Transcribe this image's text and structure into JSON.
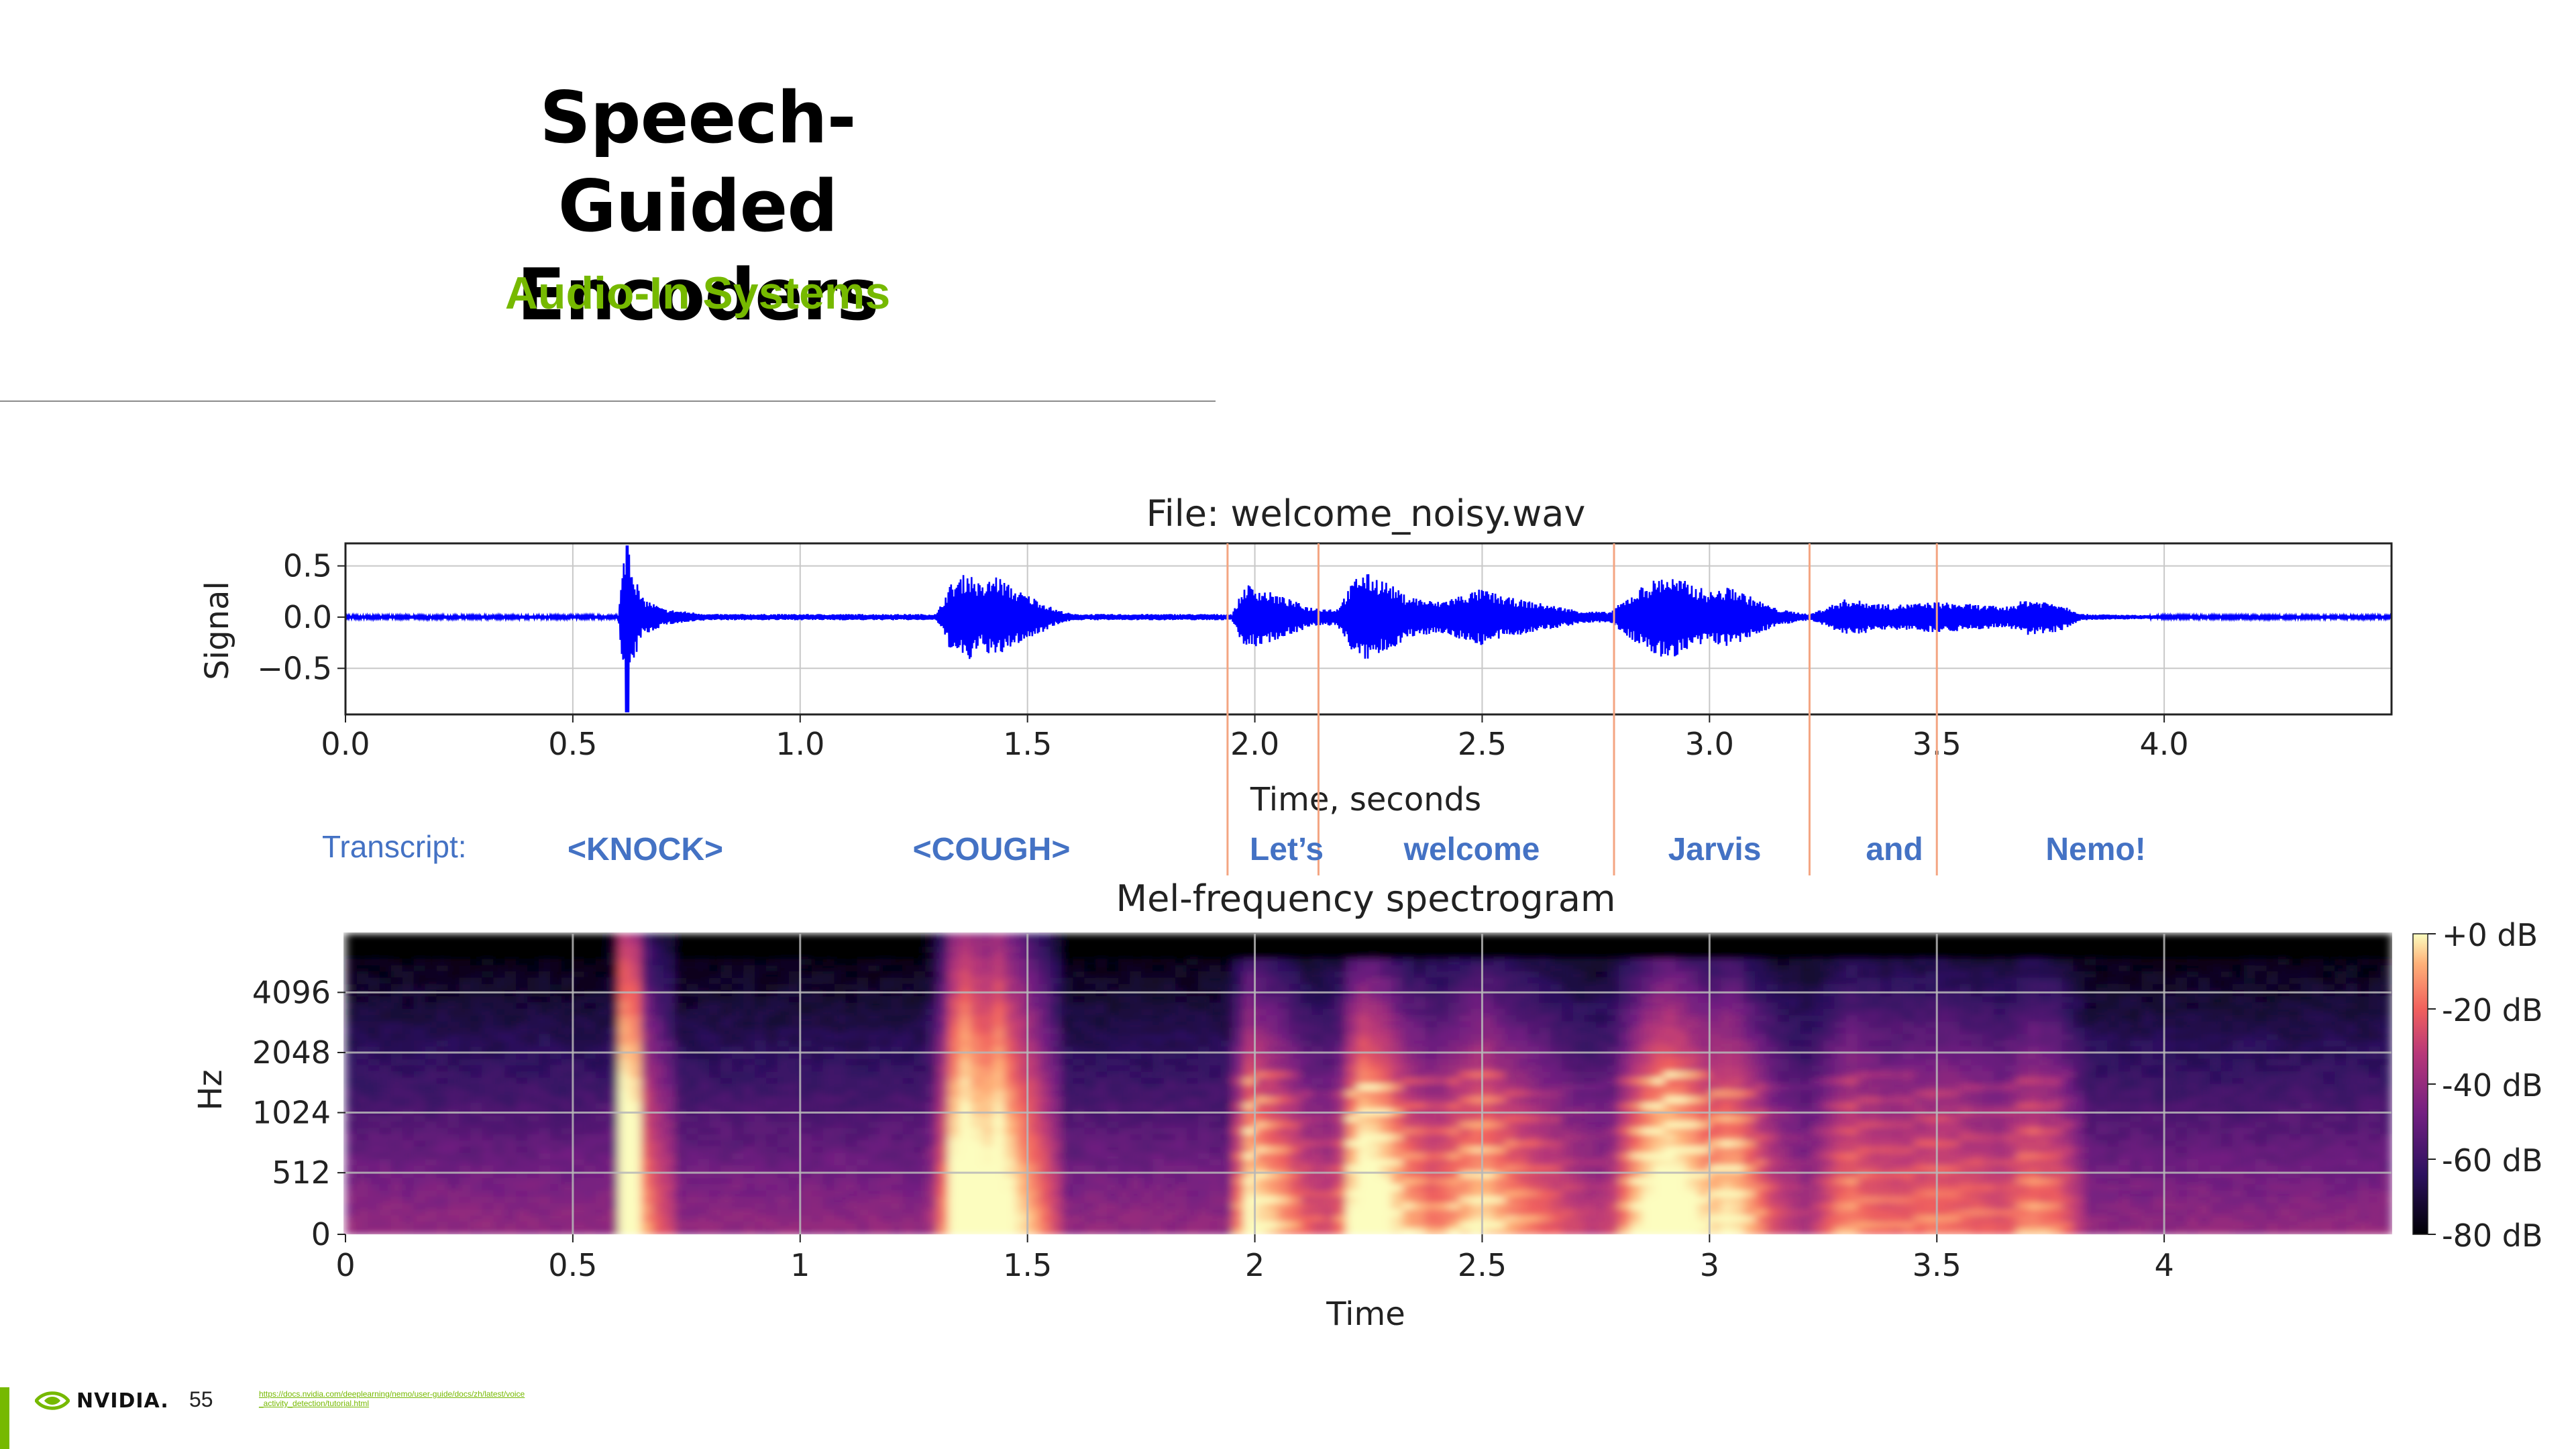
{
  "slide": {
    "title_line1": "Speech-Guided",
    "title_line2": "Encoders",
    "subtitle": "Audio-In Systems",
    "page_number": "55",
    "source_url": "https://docs.nvidia.com/deeplearning/nemo/user-guide/docs/zh/latest/voice_activity_detection/tutorial.html",
    "logo_text": "NVIDIA."
  },
  "colors": {
    "accent_green": "#76b900",
    "waveform_blue": "#0000ff",
    "transcript_blue": "#4472c4",
    "word_boundary": "#f4a582"
  },
  "chart_data": [
    {
      "type": "line",
      "title": "File: welcome_noisy.wav",
      "xlabel": "Time, seconds",
      "ylabel": "Signal",
      "xlim": [
        0,
        4.5
      ],
      "ylim": [
        -0.95,
        0.72
      ],
      "xticks": [
        "0.0",
        "0.5",
        "1.0",
        "1.5",
        "2.0",
        "2.5",
        "3.0",
        "3.5",
        "4.0"
      ],
      "xtick_values": [
        0,
        0.5,
        1.0,
        1.5,
        2.0,
        2.5,
        3.0,
        3.5,
        4.0
      ],
      "yticks": [
        "0.5",
        "0.0",
        "−0.5"
      ],
      "ytick_values": [
        0.5,
        0.0,
        -0.5
      ],
      "grid": true,
      "series": [
        {
          "envelope_x": [
            0.0,
            0.6,
            0.62,
            0.63,
            0.65,
            0.7,
            0.8,
            1.3,
            1.33,
            1.37,
            1.4,
            1.43,
            1.47,
            1.52,
            1.56,
            1.6,
            1.95,
            1.98,
            2.05,
            2.12,
            2.18,
            2.23,
            2.28,
            2.33,
            2.4,
            2.5,
            2.55,
            2.65,
            2.72,
            2.78,
            2.85,
            2.9,
            2.95,
            3.0,
            3.05,
            3.1,
            3.15,
            3.22,
            3.3,
            3.4,
            3.5,
            3.6,
            3.65,
            3.7,
            3.77,
            3.82,
            4.0,
            4.5
          ],
          "envelope_y": [
            0.015,
            0.015,
            0.95,
            0.55,
            0.2,
            0.08,
            0.03,
            0.03,
            0.32,
            0.45,
            0.3,
            0.42,
            0.28,
            0.18,
            0.08,
            0.03,
            0.03,
            0.33,
            0.22,
            0.1,
            0.08,
            0.45,
            0.38,
            0.22,
            0.15,
            0.28,
            0.2,
            0.12,
            0.06,
            0.05,
            0.3,
            0.42,
            0.35,
            0.25,
            0.3,
            0.18,
            0.08,
            0.03,
            0.18,
            0.12,
            0.15,
            0.12,
            0.1,
            0.18,
            0.14,
            0.03,
            0.015,
            0.015
          ]
        }
      ]
    },
    {
      "type": "heatmap",
      "title": "Mel-frequency spectrogram",
      "xlabel": "Time",
      "ylabel": "Hz",
      "xlim": [
        0,
        4.5
      ],
      "xticks": [
        "0",
        "0.5",
        "1",
        "1.5",
        "2",
        "2.5",
        "3",
        "3.5",
        "4"
      ],
      "xtick_values": [
        0,
        0.5,
        1,
        1.5,
        2,
        2.5,
        3,
        3.5,
        4
      ],
      "yticks": [
        "4096",
        "2048",
        "1024",
        "512",
        "0"
      ],
      "colorbar": {
        "labels": [
          "+0 dB",
          "-20 dB",
          "-40 dB",
          "-60 dB",
          "-80 dB"
        ],
        "range": [
          -80,
          0
        ]
      },
      "grid": true
    }
  ],
  "transcript": {
    "label": "Transcript:",
    "words": [
      "<KNOCK>",
      "<COUGH>",
      "Let’s",
      "welcome",
      "Jarvis",
      "and",
      "Nemo!"
    ],
    "boundaries_seconds": [
      1.94,
      2.14,
      2.79,
      3.22,
      3.5
    ]
  }
}
